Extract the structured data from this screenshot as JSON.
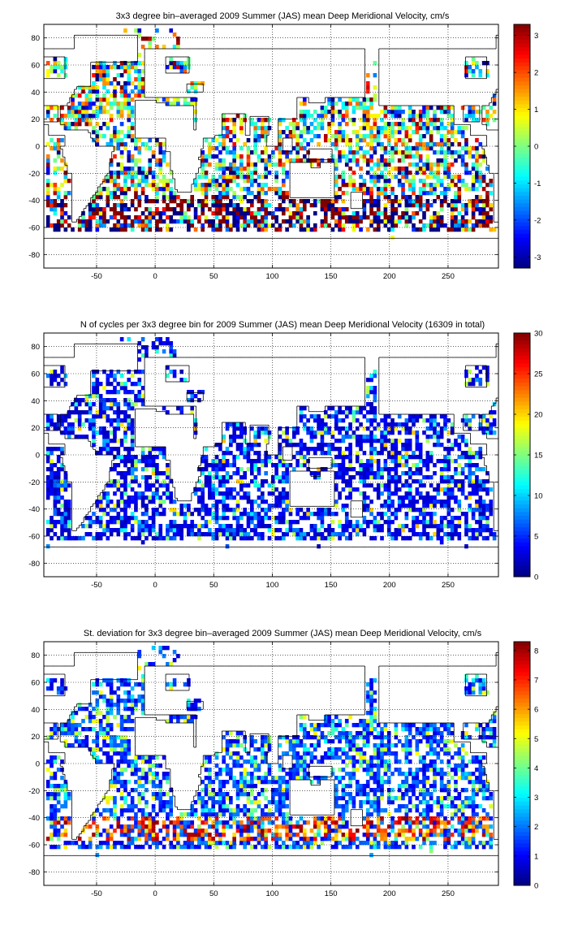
{
  "chart_data": [
    {
      "type": "heatmap",
      "title": "3x3 degree bin–averaged 2009 Summer (JAS) mean Deep Meridional Velocity, cm/s",
      "x_ticks": [
        "-50",
        "0",
        "50",
        "100",
        "150",
        "200",
        "250"
      ],
      "y_ticks": [
        "80",
        "60",
        "40",
        "20",
        "0",
        "-20",
        "-40",
        "-60",
        "-80"
      ],
      "xlim": [
        -95,
        293
      ],
      "ylim": [
        -90,
        90
      ],
      "grid": true,
      "colorbar": {
        "ticks": [
          "3",
          "2",
          "1",
          "0",
          "-1",
          "-2",
          "-3"
        ],
        "range": [
          -3.3,
          3.3
        ],
        "colormap": "jet"
      },
      "bin_size_deg": 3,
      "value_distribution": "mostly near zero (cyan/green) with scattered extremes; strong red/dark-red and blue bins in the Southern Ocean 40-60S"
    },
    {
      "type": "heatmap",
      "title": "N of cycles per 3x3 degree bin for 2009 Summer (JAS) mean Deep Meridional Velocity (16309 in total)",
      "x_ticks": [
        "-50",
        "0",
        "50",
        "100",
        "150",
        "200",
        "250"
      ],
      "y_ticks": [
        "80",
        "60",
        "40",
        "20",
        "0",
        "-20",
        "-40",
        "-60",
        "-80"
      ],
      "xlim": [
        -95,
        293
      ],
      "ylim": [
        -90,
        90
      ],
      "grid": true,
      "colorbar": {
        "ticks": [
          "30",
          "25",
          "20",
          "15",
          "10",
          "5",
          "0"
        ],
        "range": [
          0,
          30
        ],
        "colormap": "jet"
      },
      "bin_size_deg": 3,
      "value_distribution": "most bins have few cycles (dark blue, ~1-5); some cyan/yellow bins up to ~15-20"
    },
    {
      "type": "heatmap",
      "title": "St. deviation for 3x3 degree bin–averaged 2009 Summer (JAS) mean Deep Meridional Velocity, cm/s",
      "x_ticks": [
        "-50",
        "0",
        "50",
        "100",
        "150",
        "200",
        "250"
      ],
      "y_ticks": [
        "80",
        "60",
        "40",
        "20",
        "0",
        "-20",
        "-40",
        "-60",
        "-80"
      ],
      "xlim": [
        -95,
        293
      ],
      "ylim": [
        -90,
        90
      ],
      "grid": true,
      "colorbar": {
        "ticks": [
          "8",
          "7",
          "6",
          "5",
          "4",
          "3",
          "2",
          "1",
          "0"
        ],
        "range": [
          0,
          8.3
        ],
        "colormap": "jet"
      },
      "bin_size_deg": 3,
      "value_distribution": "low (blue, 1-2 cm/s) over most of the ocean; high (red/dark red, 6-8 cm/s) in the Southern Ocean 40-55S"
    }
  ],
  "colors": {
    "background": "#ffffff",
    "coastline": "#000000",
    "grid": "#000000"
  }
}
